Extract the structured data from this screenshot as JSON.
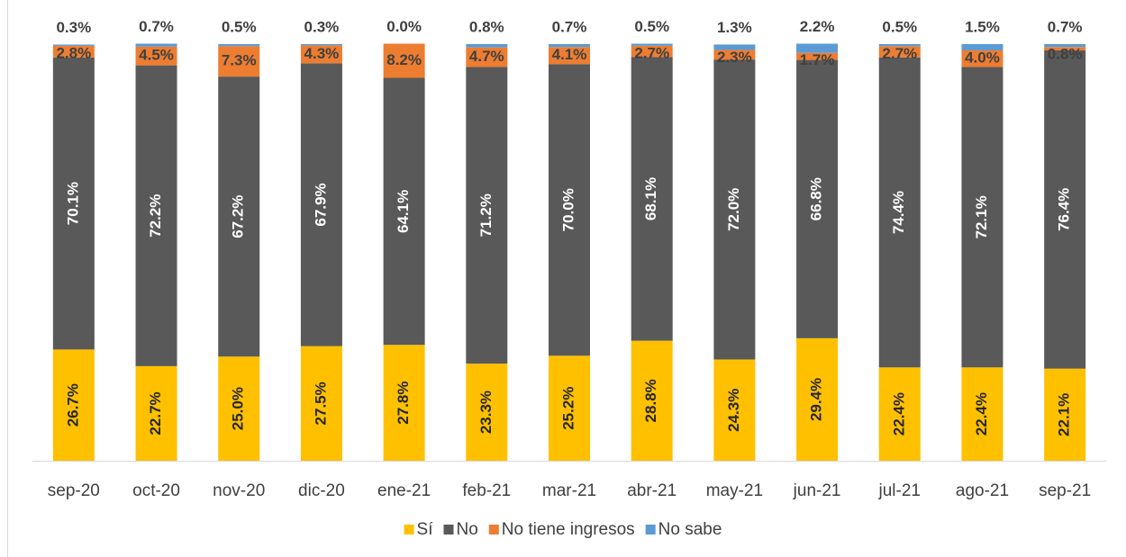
{
  "chart_data": {
    "type": "stacked_bar",
    "categories": [
      "sep-20",
      "oct-20",
      "nov-20",
      "dic-20",
      "ene-21",
      "feb-21",
      "mar-21",
      "abr-21",
      "may-21",
      "jun-21",
      "jul-21",
      "ago-21",
      "sep-21"
    ],
    "ylim": [
      0,
      100
    ],
    "series": [
      {
        "name": "Sí",
        "color": "#FFC000",
        "values": [
          26.7,
          22.7,
          25.0,
          27.5,
          27.8,
          23.3,
          25.2,
          28.8,
          24.3,
          29.4,
          22.4,
          22.4,
          22.1
        ],
        "value_labels": [
          "26.7%",
          "22.7%",
          "25.0%",
          "27.5%",
          "27.8%",
          "23.3%",
          "25.2%",
          "28.8%",
          "24.3%",
          "29.4%",
          "22.4%",
          "22.4%",
          "22.1%"
        ]
      },
      {
        "name": "No",
        "color": "#595959",
        "values": [
          70.1,
          72.2,
          67.2,
          67.9,
          64.1,
          71.2,
          70.0,
          68.1,
          72.0,
          66.8,
          74.4,
          72.1,
          76.4
        ],
        "value_labels": [
          "70.1%",
          "72.2%",
          "67.2%",
          "67.9%",
          "64.1%",
          "71.2%",
          "70.0%",
          "68.1%",
          "72.0%",
          "66.8%",
          "74.4%",
          "72.1%",
          "76.4%"
        ]
      },
      {
        "name": "No tiene ingresos",
        "color": "#ED7D31",
        "values": [
          2.8,
          4.5,
          7.3,
          4.3,
          8.2,
          4.7,
          4.1,
          2.7,
          2.3,
          1.7,
          2.7,
          4.0,
          0.8
        ],
        "value_labels": [
          "2.8%",
          "4.5%",
          "7.3%",
          "4.3%",
          "8.2%",
          "4.7%",
          "4.1%",
          "2.7%",
          "2.3%",
          "1.7%",
          "2.7%",
          "4.0%",
          "0.8%"
        ]
      },
      {
        "name": "No sabe",
        "color": "#5B9BD5",
        "values": [
          0.3,
          0.7,
          0.5,
          0.3,
          0.0,
          0.8,
          0.7,
          0.5,
          1.3,
          2.2,
          0.5,
          1.5,
          0.7
        ],
        "value_labels": [
          "0.3%",
          "0.7%",
          "0.5%",
          "0.3%",
          "0.0%",
          "0.8%",
          "0.7%",
          "0.5%",
          "1.3%",
          "2.2%",
          "0.5%",
          "1.5%",
          "0.7%"
        ]
      }
    ]
  }
}
